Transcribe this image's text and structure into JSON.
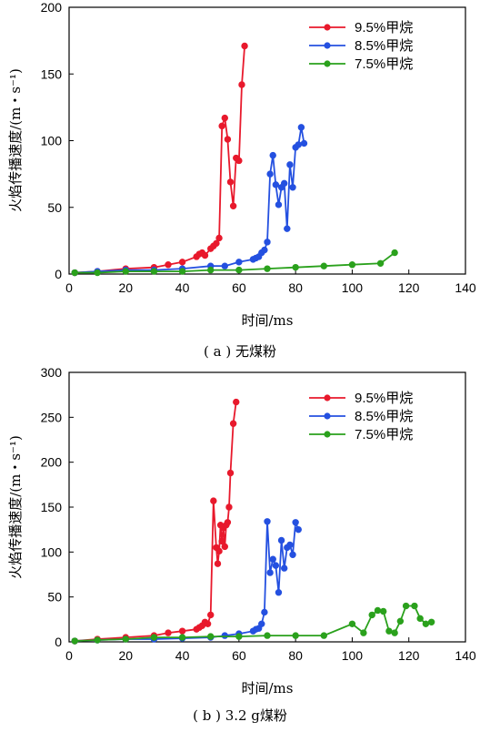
{
  "colors": {
    "red": "#e8192c",
    "blue": "#2450e0",
    "green": "#2aa11c"
  },
  "chart_data": [
    {
      "type": "line",
      "caption": "( a ) 无煤粉",
      "xlabel": "时间/ms",
      "ylabel": "火焰传播速度/(m・s⁻¹)",
      "xlim": [
        0,
        140
      ],
      "ylim": [
        0,
        200
      ],
      "xticks": [
        0,
        20,
        40,
        60,
        80,
        100,
        120,
        140
      ],
      "yticks": [
        0,
        50,
        100,
        150,
        200
      ],
      "legend_position": "top-right",
      "series": [
        {
          "name": "9.5%甲烷",
          "color": "#e8192c",
          "x": [
            2,
            10,
            20,
            30,
            35,
            40,
            45,
            46,
            47,
            48,
            50,
            51,
            52,
            53,
            54,
            55,
            56,
            57,
            58,
            59,
            60,
            61,
            62
          ],
          "y": [
            1,
            2,
            4,
            5,
            7,
            9,
            13,
            15,
            16,
            14,
            19,
            21,
            23,
            27,
            111,
            117,
            101,
            69,
            51,
            87,
            85,
            142,
            171
          ]
        },
        {
          "name": "8.5%甲烷",
          "color": "#2450e0",
          "x": [
            2,
            10,
            20,
            30,
            40,
            50,
            55,
            60,
            65,
            66,
            67,
            68,
            69,
            70,
            71,
            72,
            73,
            74,
            75,
            76,
            77,
            78,
            79,
            80,
            81,
            82,
            83
          ],
          "y": [
            1,
            2,
            3,
            3,
            4,
            6,
            6,
            9,
            11,
            12,
            13,
            16,
            18,
            24,
            75,
            89,
            67,
            52,
            65,
            68,
            34,
            82,
            65,
            95,
            97,
            110,
            98
          ]
        },
        {
          "name": "7.5%甲烷",
          "color": "#2aa11c",
          "x": [
            2,
            10,
            20,
            30,
            40,
            50,
            60,
            70,
            80,
            90,
            100,
            110,
            115
          ],
          "y": [
            1,
            1,
            2,
            2,
            2,
            3,
            3,
            4,
            5,
            6,
            7,
            8,
            16
          ]
        }
      ]
    },
    {
      "type": "line",
      "caption": "( b ) 3.2 g煤粉",
      "xlabel": "时间/ms",
      "ylabel": "火焰传播速度/(m・s⁻¹)",
      "xlim": [
        0,
        140
      ],
      "ylim": [
        0,
        300
      ],
      "xticks": [
        0,
        20,
        40,
        60,
        80,
        100,
        120,
        140
      ],
      "yticks": [
        0,
        50,
        100,
        150,
        200,
        250,
        300
      ],
      "legend_position": "top-right",
      "series": [
        {
          "name": "9.5%甲烷",
          "color": "#e8192c",
          "x": [
            2,
            10,
            20,
            30,
            35,
            40,
            45,
            46,
            47,
            48,
            49,
            50,
            51,
            52,
            52.5,
            53,
            53.5,
            54,
            54.5,
            55,
            55.5,
            56,
            56.5,
            57,
            58,
            59
          ],
          "y": [
            1,
            3,
            5,
            7,
            10,
            12,
            14,
            16,
            18,
            22,
            20,
            30,
            157,
            105,
            87,
            101,
            130,
            112,
            127,
            106,
            130,
            133,
            150,
            188,
            243,
            267
          ]
        },
        {
          "name": "8.5%甲烷",
          "color": "#2450e0",
          "x": [
            2,
            10,
            20,
            30,
            40,
            50,
            55,
            60,
            65,
            66,
            67,
            68,
            69,
            70,
            71,
            72,
            73,
            74,
            75,
            76,
            77,
            78,
            79,
            80,
            81
          ],
          "y": [
            1,
            2,
            3,
            3,
            4,
            5,
            7,
            9,
            12,
            14,
            15,
            20,
            33,
            134,
            77,
            92,
            85,
            55,
            113,
            82,
            105,
            108,
            97,
            133,
            125
          ]
        },
        {
          "name": "7.5%甲烷",
          "color": "#2aa11c",
          "x": [
            2,
            10,
            20,
            30,
            40,
            50,
            60,
            70,
            80,
            90,
            100,
            104,
            107,
            109,
            111,
            113,
            115,
            117,
            119,
            122,
            124,
            126,
            128
          ],
          "y": [
            1,
            2,
            3,
            5,
            5,
            6,
            6,
            7,
            7,
            7,
            20,
            10,
            30,
            35,
            34,
            12,
            10,
            23,
            40,
            40,
            26,
            20,
            22
          ]
        }
      ]
    }
  ]
}
